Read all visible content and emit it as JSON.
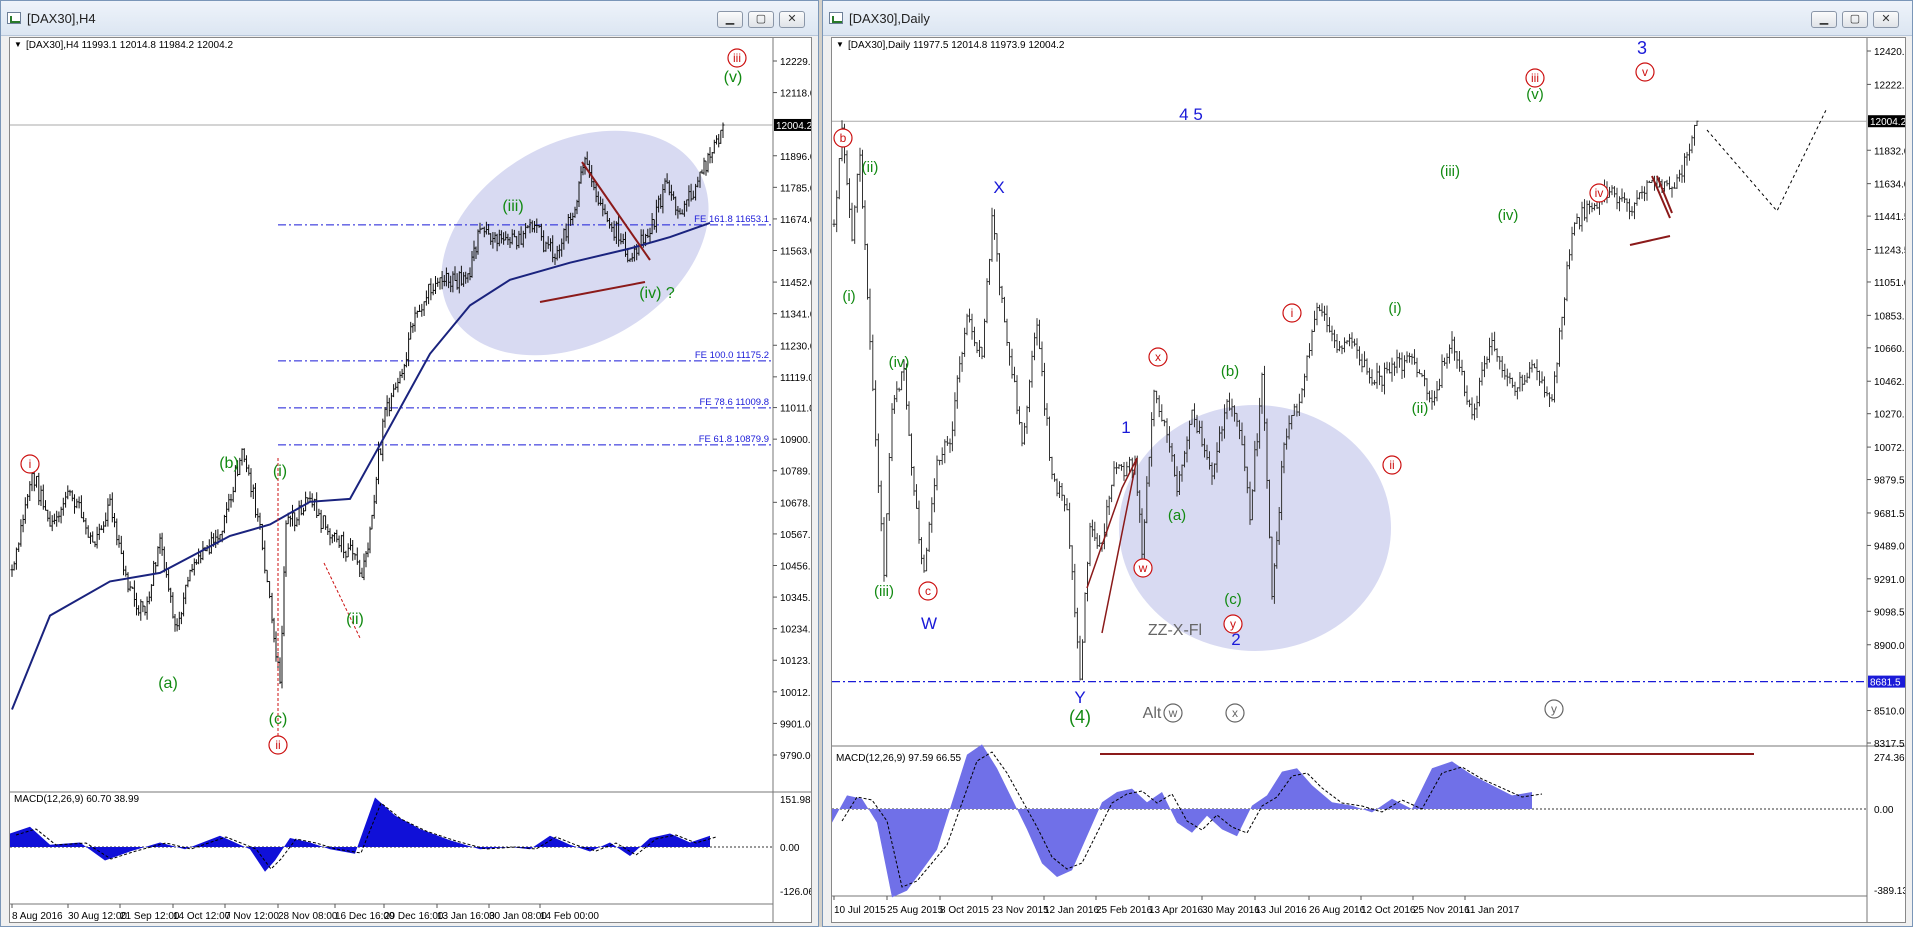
{
  "windows": [
    {
      "id": "left",
      "title": "[DAX30],H4",
      "header_text": "[DAX30],H4  11993.1 12014.8 11984.2 12004.2",
      "price_axis": [
        "12229.0",
        "12118.0",
        "12004.2",
        "11896.0",
        "11785.0",
        "11674.0",
        "11563.0",
        "11452.0",
        "11341.0",
        "11230.0",
        "11119.0",
        "11011.0",
        "10900.0",
        "10789.0",
        "10678.0",
        "10567.0",
        "10456.0",
        "10345.0",
        "10234.0",
        "10123.0",
        "10012.0",
        "9901.0",
        "9790.0"
      ],
      "current_price": "12004.2",
      "macd_label": "MACD(12,26,9) 60.70 38.99",
      "macd_axis": [
        "151.98",
        "0.00",
        "-126.06"
      ],
      "time_axis": [
        "8 Aug 2016",
        "30 Aug 12:00",
        "21 Sep 12:00",
        "14 Oct 12:00",
        "7 Nov 12:00",
        "28 Nov 08:00",
        "16 Dec 16:00",
        "29 Dec 16:00",
        "13 Jan 16:00",
        "30 Jan 08:00",
        "14 Feb 00:00"
      ],
      "fib_levels": [
        {
          "label": "FE 161.8  11653.1",
          "price": 11653.1
        },
        {
          "label": "FE 100.0  11175.2",
          "price": 11175.2
        },
        {
          "label": "FE 78.6  11009.8",
          "price": 11009.8
        },
        {
          "label": "FE 61.8  10879.9",
          "price": 10879.9
        }
      ],
      "wave_labels": [
        "iii",
        "(v)",
        "(iii)",
        "(iv) ?",
        "i",
        "(b)",
        "(i)",
        "(ii)",
        "(a)",
        "(c)",
        "ii"
      ]
    },
    {
      "id": "right",
      "title": "[DAX30],Daily",
      "header_text": "[DAX30],Daily  11977.5 12014.8 11973.9 12004.2",
      "price_axis": [
        "12420.5",
        "12222.5",
        "12004.2",
        "11832.0",
        "11634.0",
        "11441.5",
        "11243.5",
        "11051.0",
        "10853.0",
        "10660.5",
        "10462.5",
        "10270.0",
        "10072.0",
        "9879.5",
        "9681.5",
        "9489.0",
        "9291.0",
        "9098.5",
        "8900.0",
        "8681.5",
        "8510.0",
        "8317.5"
      ],
      "current_price": "12004.2",
      "support_price": "8681.5",
      "macd_label": "MACD(12,26,9) 97.59 66.55",
      "macd_axis": [
        "274.36",
        "0.00",
        "-389.13"
      ],
      "time_axis": [
        "10 Jul 2015",
        "25 Aug 2015",
        "8 Oct 2015",
        "23 Nov 2015",
        "12 Jan 2016",
        "25 Feb 2016",
        "13 Apr 2016",
        "30 May 2016",
        "13 Jul 2016",
        "26 Aug 2016",
        "12 Oct 2016",
        "25 Nov 2016",
        "11 Jan 2017"
      ],
      "wave_labels": [
        "b",
        "(ii)",
        "(i)",
        "(iv)",
        "(iii)",
        "c",
        "W",
        "X",
        "Y",
        "(4)",
        "1",
        "x",
        "w",
        "(a)",
        "(b)",
        "(c)",
        "y",
        "2",
        "ZZ-X-Fl",
        "i",
        "ii",
        "(i)",
        "(ii)",
        "(iii)",
        "(iv)",
        "iii",
        "(v)",
        "iv",
        "v",
        "3",
        "4 5",
        "Alt",
        "w",
        "x",
        "y"
      ]
    }
  ],
  "colors": {
    "red": "#cc1111",
    "green": "#128a12",
    "blue": "#1a1ad8",
    "darkred": "#8b1a1a",
    "ellipse": "#d8daf2",
    "macd_fill": "#1010d8",
    "macd_fill_daily": "#7070e8"
  },
  "chart_data": [
    {
      "type": "line",
      "title": "[DAX30],H4",
      "ylim": [
        9790,
        12229
      ],
      "x": [
        "8 Aug 2016",
        "30 Aug 12:00",
        "21 Sep 12:00",
        "14 Oct 12:00",
        "7 Nov 12:00",
        "28 Nov 08:00",
        "16 Dec 16:00",
        "29 Dec 16:00",
        "13 Jan 16:00",
        "30 Jan 08:00",
        "14 Feb 00:00"
      ],
      "series": [
        {
          "values": [
            10550,
            10620,
            10480,
            10620,
            10340,
            10560,
            11450,
            11620,
            11700,
            11500,
            11850
          ]
        }
      ],
      "last": 12004.2
    },
    {
      "type": "line",
      "title": "[DAX30],Daily",
      "ylim": [
        8317.5,
        12420.5
      ],
      "x": [
        "10 Jul 2015",
        "25 Aug 2015",
        "8 Oct 2015",
        "23 Nov 2015",
        "12 Jan 2016",
        "25 Feb 2016",
        "13 Apr 2016",
        "30 May 2016",
        "13 Jul 2016",
        "26 Aug 2016",
        "12 Oct 2016",
        "25 Nov 2016",
        "11 Jan 2017"
      ],
      "series": [
        {
          "values": [
            11700,
            10100,
            10100,
            11100,
            9700,
            9300,
            10300,
            10100,
            10050,
            10550,
            10500,
            11300,
            11650
          ]
        }
      ],
      "last": 12004.2
    }
  ]
}
